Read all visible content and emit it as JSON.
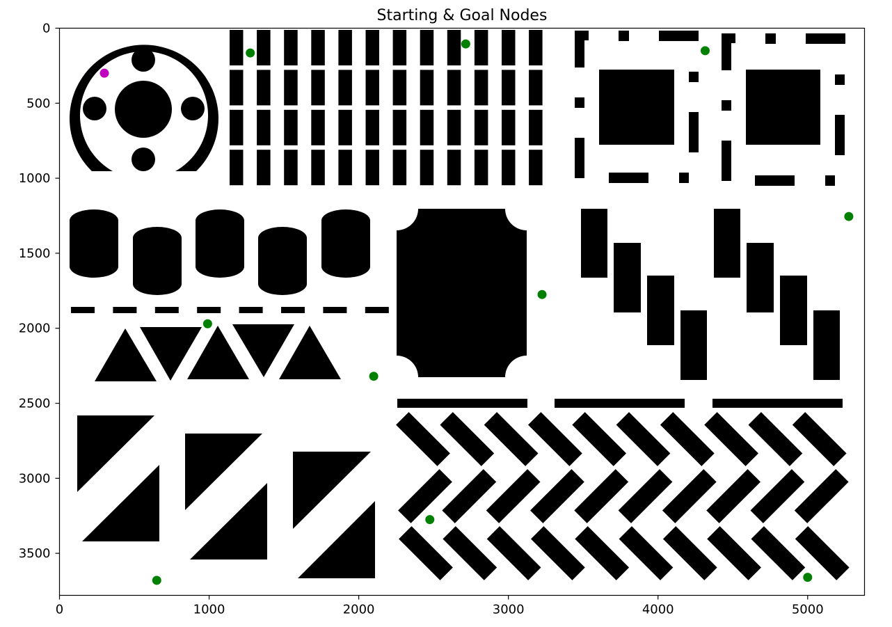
{
  "chart_data": {
    "type": "scatter",
    "title": "Starting & Goal Nodes",
    "xlabel": "",
    "ylabel": "",
    "xlim": [
      0,
      5380
    ],
    "ylim": [
      3780,
      0
    ],
    "y_inverted": true,
    "x_ticks": [
      0,
      1000,
      2000,
      3000,
      4000,
      5000
    ],
    "y_ticks": [
      0,
      500,
      1000,
      1500,
      2000,
      2500,
      3000,
      3500
    ],
    "grid": false,
    "legend": "none",
    "colors": {
      "start": "#bf00bf",
      "goal": "#008000",
      "obstacle": "#000000"
    },
    "series": [
      {
        "role": "start",
        "points": [
          [
            300,
            300
          ]
        ]
      },
      {
        "role": "goal",
        "points": [
          [
            1275,
            165
          ],
          [
            2715,
            105
          ],
          [
            4315,
            150
          ],
          [
            5275,
            1255
          ],
          [
            3225,
            1775
          ],
          [
            990,
            1970
          ],
          [
            2100,
            2320
          ],
          [
            2475,
            3275
          ],
          [
            650,
            3680
          ],
          [
            5000,
            3660
          ]
        ]
      }
    ]
  }
}
